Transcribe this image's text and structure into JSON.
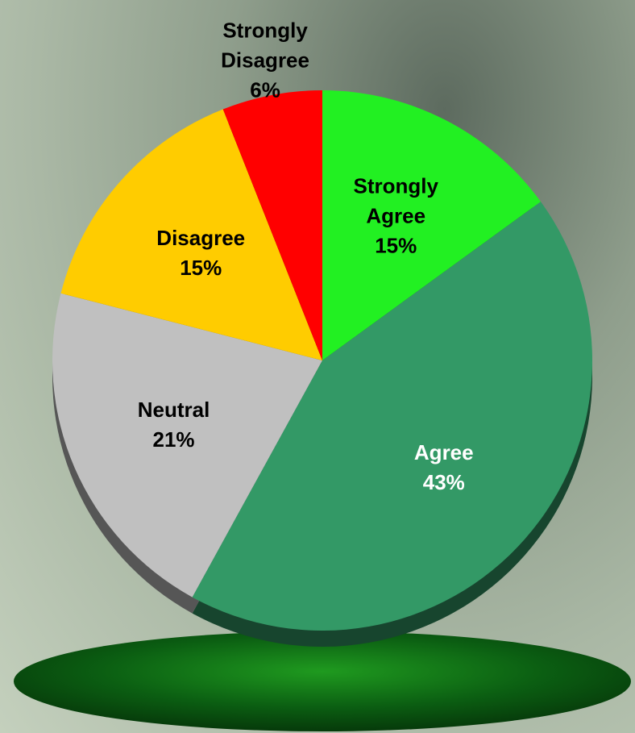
{
  "chart_data": {
    "type": "pie",
    "categories": [
      "Strongly Agree",
      "Agree",
      "Neutral",
      "Disagree",
      "Strongly Disagree"
    ],
    "values": [
      15,
      43,
      21,
      15,
      6
    ],
    "value_labels": [
      "15%",
      "43%",
      "21%",
      "15%",
      "6%"
    ],
    "colors": [
      "#22f022",
      "#339966",
      "#c0c0c0",
      "#ffcc00",
      "#ff0000"
    ],
    "start_angle": 0,
    "direction": "clockwise"
  }
}
